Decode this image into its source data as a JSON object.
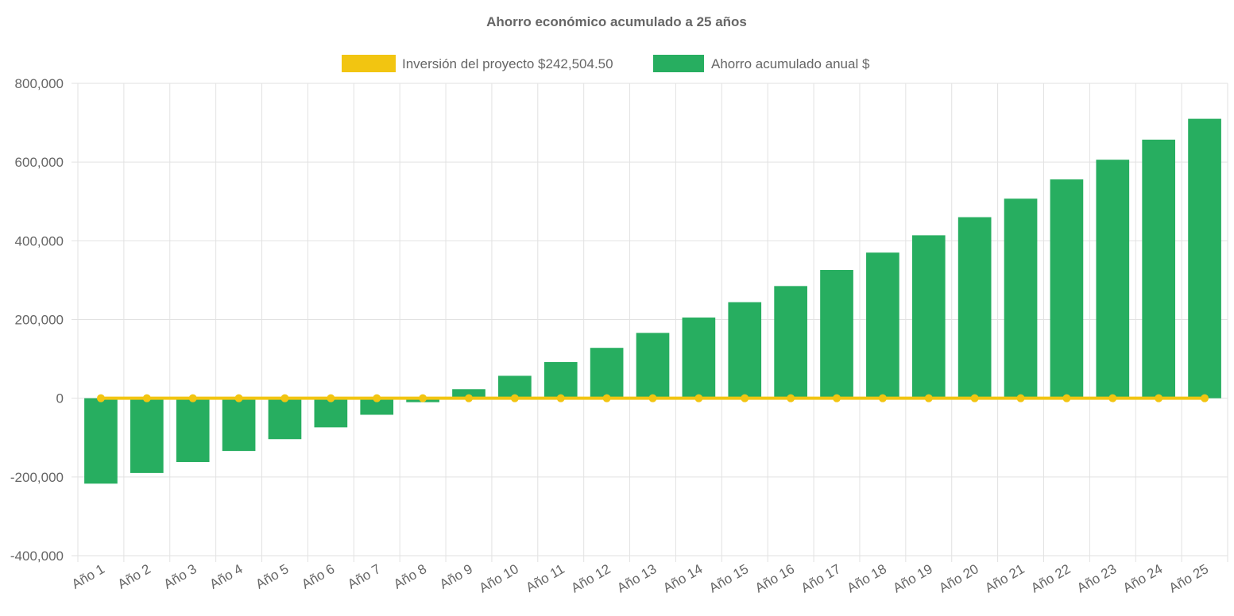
{
  "chart_data": {
    "type": "bar",
    "title": "Ahorro económico acumulado a 25 años",
    "categories": [
      "Año 1",
      "Año 2",
      "Año 3",
      "Año 4",
      "Año 5",
      "Año 6",
      "Año 7",
      "Año 8",
      "Año 9",
      "Año 10",
      "Año 11",
      "Año 12",
      "Año 13",
      "Año 14",
      "Año 15",
      "Año 16",
      "Año 17",
      "Año 18",
      "Año 19",
      "Año 20",
      "Año 21",
      "Año 22",
      "Año 23",
      "Año 24",
      "Año 25"
    ],
    "series": [
      {
        "name": "Inversión del proyecto $242,504.50",
        "type": "line",
        "color": "#f2c511",
        "values": [
          0,
          0,
          0,
          0,
          0,
          0,
          0,
          0,
          0,
          0,
          0,
          0,
          0,
          0,
          0,
          0,
          0,
          0,
          0,
          0,
          0,
          0,
          0,
          0,
          0
        ]
      },
      {
        "name": "Ahorro acumulado anual $",
        "type": "bar",
        "color": "#27ae60",
        "values": [
          -217000,
          -190000,
          -162000,
          -134000,
          -104000,
          -74000,
          -42000,
          -10000,
          23000,
          57000,
          92000,
          128000,
          166000,
          205000,
          244000,
          285000,
          326000,
          370000,
          414000,
          460000,
          507000,
          556000,
          606000,
          657000,
          710000
        ]
      }
    ],
    "ylim": [
      -400000,
      800000
    ],
    "yticks": [
      "800,000",
      "600,000",
      "400,000",
      "200,000",
      "0",
      "-200,000",
      "-400,000"
    ],
    "ytick_values": [
      800000,
      600000,
      400000,
      200000,
      0,
      -200000,
      -400000
    ],
    "grid": true,
    "legend_position": "top-center"
  }
}
